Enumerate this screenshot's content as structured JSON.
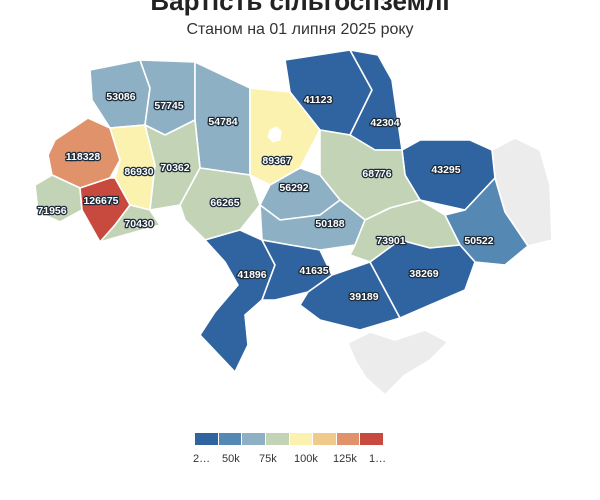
{
  "title": "Вартість сільгоспземлі",
  "subtitle": "Станом на 01 липня 2025 року",
  "colors": {
    "scale": [
      "#2f64a0",
      "#5589b4",
      "#8eb0c4",
      "#c3d4b6",
      "#fbf2b0",
      "#f0c98c",
      "#e0926b",
      "#c8493e"
    ],
    "no_data": "#ececec"
  },
  "legend": {
    "labels": [
      "2…",
      "50k",
      "75k",
      "100k",
      "125k",
      "1…"
    ]
  },
  "regions": [
    {
      "id": "volyn",
      "value": "53086"
    },
    {
      "id": "rivne",
      "value": "57745"
    },
    {
      "id": "lviv",
      "value": "118328"
    },
    {
      "id": "ternopil",
      "value": "86930"
    },
    {
      "id": "khmelnytskyi",
      "value": "70362"
    },
    {
      "id": "zhytomyr",
      "value": "54784"
    },
    {
      "id": "kyiv",
      "value": "89367"
    },
    {
      "id": "chernihiv",
      "value": "41123"
    },
    {
      "id": "sumy",
      "value": "42304"
    },
    {
      "id": "poltava",
      "value": "68776"
    },
    {
      "id": "kharkiv",
      "value": "43295"
    },
    {
      "id": "zakarpattia",
      "value": "71956"
    },
    {
      "id": "ivano-frankivsk",
      "value": "126675"
    },
    {
      "id": "chernivtsi",
      "value": "70430"
    },
    {
      "id": "vinnytsia",
      "value": "66265"
    },
    {
      "id": "cherkasy",
      "value": "56292"
    },
    {
      "id": "kirovohrad",
      "value": "50188"
    },
    {
      "id": "dnipropetrovsk",
      "value": "73901"
    },
    {
      "id": "donetsk",
      "value": "50522"
    },
    {
      "id": "odesa",
      "value": "41896"
    },
    {
      "id": "mykolaiv",
      "value": "41635"
    },
    {
      "id": "kherson",
      "value": "39189"
    },
    {
      "id": "zaporizhzhia",
      "value": "38269"
    }
  ]
}
